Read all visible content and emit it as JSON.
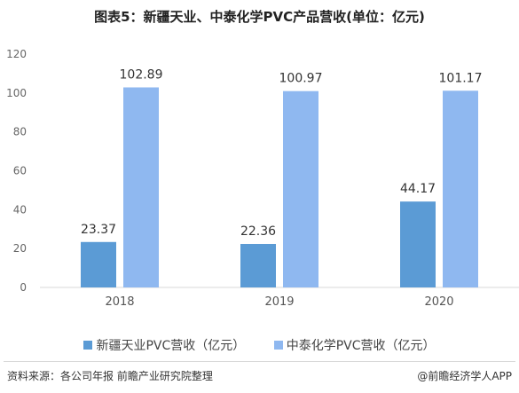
{
  "page": {
    "source_text": "资料来源：各公司年报 前瞻产业研究院整理",
    "brand_text": "@前瞻经济学人APP"
  },
  "chart_data": {
    "type": "bar",
    "title": "图表5：新疆天业、中泰化学PVC产品营收(单位：亿元)",
    "categories": [
      "2018",
      "2019",
      "2020"
    ],
    "series": [
      {
        "name": "新疆天业PVC营收（亿元）",
        "values": [
          23.37,
          22.36,
          44.17
        ],
        "color": "#5b9bd5"
      },
      {
        "name": "中泰化学PVC营收（亿元）",
        "values": [
          102.89,
          100.97,
          101.17
        ],
        "color": "#8fb8f0"
      }
    ],
    "value_labels": [
      [
        "23.37",
        "22.36",
        "44.17"
      ],
      [
        "102.89",
        "100.97",
        "101.17"
      ]
    ],
    "ylim": [
      0,
      120
    ],
    "yticks": [
      "0",
      "20",
      "40",
      "60",
      "80",
      "100",
      "120"
    ],
    "legend_position": "bottom",
    "grid": false
  }
}
